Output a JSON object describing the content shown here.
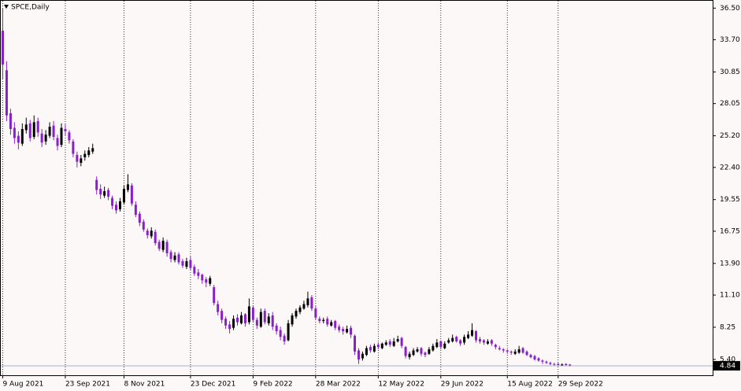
{
  "chart_data": {
    "type": "candlestick",
    "title": "SPCE,Daily",
    "up_color": "#000000",
    "down_color": "#8a1fc9",
    "open": [
      34.5,
      31.0,
      27.2,
      25.9,
      25.2,
      24.5,
      25.7,
      26.3,
      25.1,
      26.5,
      25.4,
      24.7,
      25.2,
      26.1,
      25.0,
      24.4,
      25.8,
      25.5,
      24.7,
      23.5,
      22.8,
      23.3,
      23.5,
      23.8,
      21.3,
      20.5,
      19.9,
      20.4,
      19.7,
      19.1,
      18.7,
      19.3,
      20.4,
      20.8,
      19.1,
      18.3,
      17.6,
      16.8,
      16.3,
      16.7,
      15.8,
      15.1,
      15.8,
      14.9,
      14.2,
      14.7,
      14.1,
      13.6,
      14.2,
      13.6,
      13.1,
      12.9,
      12.5,
      12.1,
      11.8,
      10.3,
      9.7,
      9.0,
      8.5,
      8.2,
      9.1,
      8.6,
      9.4,
      8.7,
      10.0,
      8.9,
      8.3,
      9.7,
      8.6,
      9.3,
      8.4,
      8.0,
      7.5,
      7.1,
      8.5,
      9.2,
      9.6,
      9.9,
      10.2,
      10.9,
      9.9,
      9.0,
      8.8,
      9.0,
      8.4,
      8.8,
      8.3,
      8.1,
      7.8,
      8.2,
      7.5,
      6.2,
      5.5,
      5.8,
      6.5,
      6.1,
      6.7,
      6.4,
      6.7,
      7.0,
      6.6,
      7.0,
      7.3,
      6.5,
      5.6,
      5.8,
      6.1,
      6.4,
      6.0,
      5.9,
      6.2,
      6.5,
      7.0,
      6.4,
      6.9,
      7.0,
      7.4,
      7.1,
      6.9,
      7.3,
      7.5,
      7.9,
      7.2,
      7.1,
      6.8,
      7.1,
      6.7,
      6.4,
      6.3,
      6.2,
      6.1,
      5.9,
      6.0,
      6.4,
      6.1,
      5.8,
      5.7,
      5.5,
      5.3,
      5.2,
      5.1,
      5.0,
      5.0,
      4.85,
      5.0,
      4.95
    ],
    "high": [
      36.5,
      31.8,
      27.6,
      26.4,
      25.6,
      26.3,
      26.8,
      26.6,
      27.0,
      26.8,
      25.8,
      25.7,
      26.4,
      26.5,
      25.3,
      26.3,
      26.2,
      25.7,
      24.9,
      23.8,
      23.5,
      23.9,
      24.2,
      24.5,
      21.6,
      20.9,
      20.7,
      20.6,
      19.9,
      19.4,
      19.7,
      20.8,
      21.8,
      21.0,
      19.4,
      18.5,
      17.8,
      17.0,
      17.1,
      16.9,
      16.0,
      16.2,
      16.0,
      15.1,
      14.9,
      14.9,
      14.3,
      14.4,
      14.5,
      13.8,
      13.4,
      13.0,
      12.7,
      12.8,
      12.0,
      10.6,
      9.9,
      9.2,
      8.8,
      9.3,
      9.4,
      9.6,
      9.5,
      10.8,
      10.2,
      9.1,
      9.9,
      9.9,
      9.5,
      9.6,
      8.6,
      8.3,
      7.7,
      8.9,
      9.5,
      9.9,
      10.2,
      10.6,
      11.4,
      11.1,
      10.1,
      9.2,
      9.1,
      9.2,
      8.9,
      8.9,
      8.5,
      8.3,
      8.4,
      8.4,
      7.6,
      6.4,
      6.1,
      6.6,
      6.7,
      6.8,
      6.9,
      6.9,
      7.1,
      7.2,
      7.3,
      7.5,
      7.4,
      6.6,
      6.1,
      6.4,
      6.5,
      6.5,
      6.1,
      6.5,
      6.8,
      7.2,
      7.1,
      7.0,
      7.3,
      7.6,
      7.5,
      7.2,
      7.6,
      7.9,
      8.6,
      8.0,
      7.4,
      7.2,
      7.2,
      7.2,
      6.8,
      6.6,
      6.4,
      6.3,
      6.2,
      6.3,
      6.6,
      6.5,
      6.2,
      5.9,
      5.8,
      5.6,
      5.4,
      5.3,
      5.2,
      5.1,
      5.1,
      5.05,
      5.05,
      5.0
    ],
    "low": [
      30.2,
      26.5,
      25.3,
      24.5,
      24.0,
      24.3,
      25.4,
      24.7,
      24.9,
      25.1,
      24.2,
      24.4,
      25.0,
      24.8,
      23.9,
      24.2,
      25.2,
      24.5,
      23.3,
      22.4,
      22.5,
      23.0,
      23.3,
      23.6,
      20.0,
      19.6,
      19.7,
      19.5,
      18.7,
      18.3,
      18.5,
      19.1,
      20.2,
      19.0,
      18.0,
      17.2,
      16.7,
      16.1,
      16.1,
      15.5,
      15.0,
      14.9,
      14.5,
      14.0,
      14.0,
      13.8,
      13.5,
      13.4,
      13.3,
      12.8,
      12.5,
      12.1,
      11.8,
      11.9,
      10.2,
      9.3,
      8.6,
      8.1,
      7.7,
      8.0,
      8.4,
      8.5,
      8.3,
      8.5,
      8.7,
      8.1,
      8.2,
      8.5,
      8.4,
      8.0,
      7.6,
      7.1,
      6.7,
      7.0,
      8.3,
      9.0,
      9.4,
      9.8,
      10.0,
      9.7,
      8.9,
      8.6,
      8.6,
      8.3,
      8.3,
      8.0,
      7.8,
      7.6,
      7.7,
      7.3,
      5.8,
      5.0,
      5.3,
      5.7,
      6.0,
      6.0,
      6.3,
      6.3,
      6.6,
      6.5,
      6.5,
      6.9,
      6.4,
      5.5,
      5.4,
      5.7,
      6.0,
      5.7,
      5.6,
      5.8,
      6.1,
      6.4,
      6.3,
      6.3,
      6.8,
      6.9,
      6.9,
      6.6,
      6.7,
      7.2,
      7.4,
      6.9,
      6.8,
      6.7,
      6.7,
      6.6,
      6.3,
      6.2,
      6.0,
      5.9,
      5.8,
      5.8,
      5.9,
      5.9,
      5.7,
      5.5,
      5.3,
      5.2,
      5.0,
      5.0,
      4.9,
      4.85,
      4.8,
      4.8,
      4.82,
      4.78
    ],
    "close": [
      31.5,
      27.0,
      25.8,
      25.0,
      24.6,
      25.8,
      26.2,
      25.0,
      26.4,
      25.5,
      24.6,
      25.3,
      26.0,
      25.1,
      24.3,
      25.9,
      25.6,
      24.8,
      23.6,
      22.9,
      23.2,
      23.6,
      23.9,
      24.1,
      20.4,
      20.0,
      20.3,
      19.8,
      19.0,
      18.6,
      19.4,
      20.5,
      20.9,
      19.2,
      18.2,
      17.5,
      16.9,
      16.4,
      16.8,
      15.7,
      15.2,
      15.9,
      14.8,
      14.3,
      14.6,
      14.0,
      13.7,
      14.1,
      13.5,
      13.0,
      12.8,
      12.4,
      12.2,
      12.6,
      10.4,
      9.6,
      8.9,
      8.4,
      8.1,
      9.0,
      8.7,
      9.3,
      8.6,
      10.1,
      8.9,
      8.4,
      9.6,
      8.7,
      9.2,
      8.3,
      7.9,
      7.4,
      7.0,
      8.6,
      9.3,
      9.7,
      10.0,
      10.3,
      10.8,
      9.9,
      9.1,
      8.8,
      8.9,
      8.5,
      8.7,
      8.2,
      8.0,
      7.9,
      8.1,
      7.6,
      6.1,
      5.4,
      5.9,
      6.4,
      6.2,
      6.6,
      6.5,
      6.8,
      6.9,
      6.7,
      7.0,
      7.2,
      6.6,
      5.7,
      5.9,
      6.2,
      6.3,
      5.9,
      5.8,
      6.3,
      6.6,
      6.9,
      6.5,
      6.8,
      7.1,
      7.3,
      7.0,
      6.8,
      7.4,
      7.6,
      8.0,
      7.1,
      7.0,
      6.9,
      7.0,
      6.8,
      6.5,
      6.3,
      6.2,
      6.1,
      6.0,
      6.1,
      6.3,
      6.0,
      5.8,
      5.6,
      5.4,
      5.3,
      5.2,
      5.1,
      5.0,
      4.95,
      4.9,
      4.95,
      4.9,
      4.84
    ],
    "last_price": 4.84,
    "xlim": [
      -0.5,
      181.5
    ],
    "xticks": [
      {
        "value": 0,
        "label": "9 Aug 2021"
      },
      {
        "value": 16,
        "label": "23 Sep 2021"
      },
      {
        "value": 31,
        "label": "8 Nov 2021"
      },
      {
        "value": 48,
        "label": "23 Dec 2021"
      },
      {
        "value": 64,
        "label": "9 Feb 2022"
      },
      {
        "value": 80,
        "label": "28 Mar 2022"
      },
      {
        "value": 96,
        "label": "12 May 2022"
      },
      {
        "value": 112,
        "label": "29 Jun 2022"
      },
      {
        "value": 129,
        "label": "15 Aug 2022"
      },
      {
        "value": 142,
        "label": "29 Sep 2022"
      }
    ],
    "ylim": [
      4.0,
      37.15
    ],
    "yticks": [
      {
        "value": 36.5,
        "label": "36.50"
      },
      {
        "value": 33.7,
        "label": "33.70"
      },
      {
        "value": 30.85,
        "label": "30.85"
      },
      {
        "value": 28.05,
        "label": "28.05"
      },
      {
        "value": 25.2,
        "label": "25.20"
      },
      {
        "value": 22.4,
        "label": "22.40"
      },
      {
        "value": 19.55,
        "label": "19.55"
      },
      {
        "value": 16.75,
        "label": "16.75"
      },
      {
        "value": 13.9,
        "label": "13.90"
      },
      {
        "value": 11.1,
        "label": "11.10"
      },
      {
        "value": 8.25,
        "label": "8.25"
      },
      {
        "value": 5.4,
        "label": "5.40"
      }
    ],
    "grid": true
  }
}
